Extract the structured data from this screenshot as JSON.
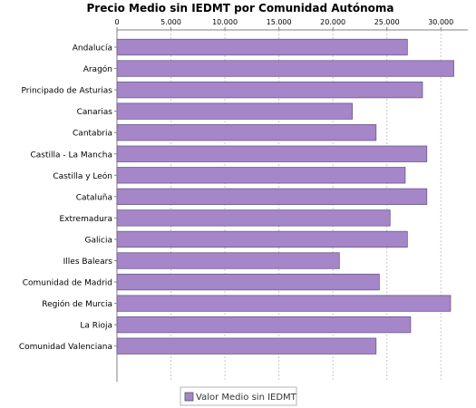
{
  "chart_data": {
    "type": "bar",
    "orientation": "horizontal",
    "title": "Precio Medio sin IEDMT por Comunidad Autónoma",
    "xlabel": "",
    "ylabel": "",
    "xlim": [
      0,
      32500
    ],
    "x_ticks": [
      {
        "value": 0,
        "label": "0"
      },
      {
        "value": 5000,
        "label": "5.000"
      },
      {
        "value": 10000,
        "label": "10.000"
      },
      {
        "value": 15000,
        "label": "15.000"
      },
      {
        "value": 20000,
        "label": "20.000"
      },
      {
        "value": 25000,
        "label": "25.000"
      },
      {
        "value": 30000,
        "label": "30.000"
      }
    ],
    "x_axis_position": "top",
    "grid": "vertical dashed",
    "legend_position": "bottom",
    "categories": [
      "Andalucía",
      "Aragón",
      "Principado de Asturias",
      "Canarias",
      "Cantabria",
      "Castilla - La Mancha",
      "Castilla y León",
      "Cataluña",
      "Extremadura",
      "Galicia",
      "Illes Balears",
      "Comunidad de Madrid",
      "Región de Murcia",
      "La Rioja",
      "Comunidad Valenciana"
    ],
    "series": [
      {
        "name": "Valor Medio sin IEDMT",
        "color": "#a586c9",
        "values": [
          26900,
          31200,
          28300,
          21800,
          24000,
          28700,
          26700,
          28700,
          25300,
          26900,
          20600,
          24300,
          30900,
          27200,
          24000
        ]
      }
    ]
  }
}
